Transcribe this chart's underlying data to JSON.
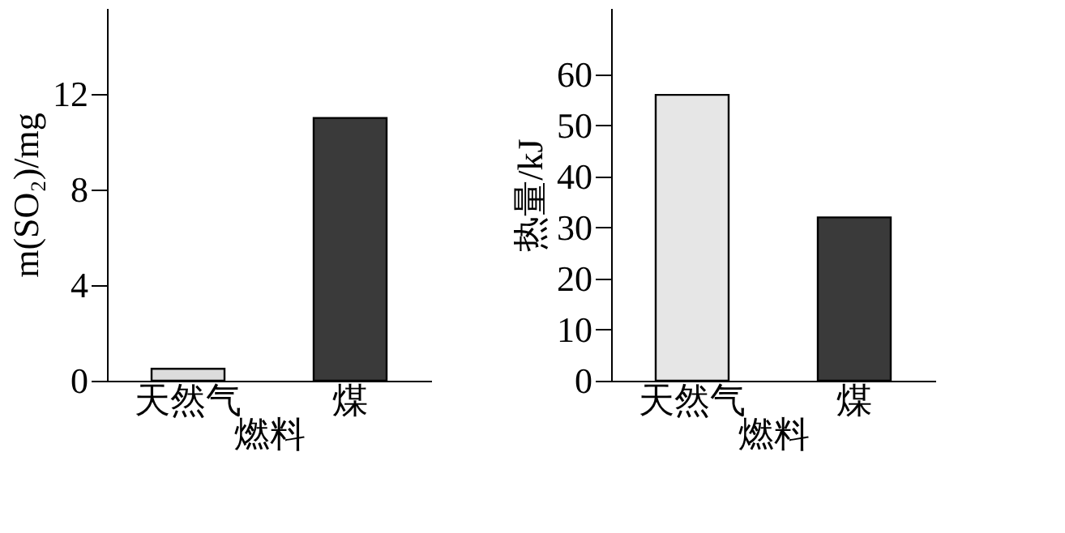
{
  "chart_data": [
    {
      "type": "bar",
      "categories": [
        "天然气",
        "煤"
      ],
      "values": [
        0.5,
        11
      ],
      "colors": [
        "#dcdcdc",
        "#3a3a3a"
      ],
      "xlabel": "燃料",
      "ylabel": "m(SO₂)/mg",
      "ylim": [
        0,
        15.6
      ],
      "yticks": [
        0,
        4,
        8,
        12
      ],
      "grid": false
    },
    {
      "type": "bar",
      "categories": [
        "天然气",
        "煤"
      ],
      "values": [
        56,
        32
      ],
      "colors": [
        "#e6e6e6",
        "#3a3a3a"
      ],
      "xlabel": "燃料",
      "ylabel": "热量/kJ",
      "ylim": [
        0,
        73
      ],
      "yticks": [
        0,
        10,
        20,
        30,
        40,
        50,
        60
      ],
      "grid": false
    }
  ]
}
